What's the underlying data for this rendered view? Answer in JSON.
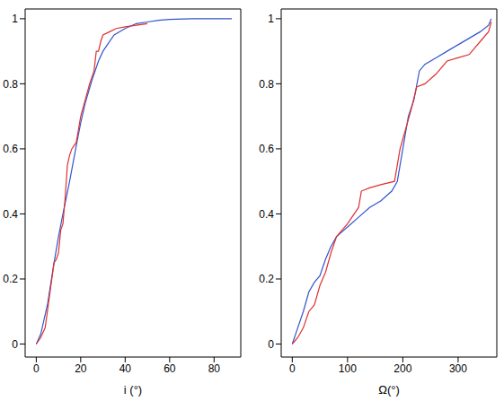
{
  "chart_data": [
    {
      "type": "line",
      "x_label": "i  (°)",
      "xlim": [
        -5,
        92
      ],
      "xticks": [
        0,
        20,
        40,
        60,
        80
      ],
      "ylim": [
        -0.04,
        1.03
      ],
      "yticks": [
        0,
        0.2,
        0.4,
        0.6,
        0.8,
        1
      ],
      "series": [
        {
          "color": "#3355cc",
          "x": [
            0,
            2,
            5,
            8,
            10,
            12,
            15,
            18,
            20,
            22,
            25,
            28,
            30,
            35,
            40,
            45,
            50,
            55,
            60,
            70,
            88
          ],
          "values": [
            0,
            0.03,
            0.12,
            0.25,
            0.33,
            0.4,
            0.5,
            0.61,
            0.68,
            0.74,
            0.81,
            0.87,
            0.9,
            0.95,
            0.97,
            0.985,
            0.99,
            0.995,
            0.998,
            1,
            1
          ]
        },
        {
          "color": "#e03030",
          "x": [
            0,
            2,
            4,
            5,
            7,
            8,
            9,
            10,
            11,
            12,
            13,
            14,
            15,
            16,
            18,
            19,
            20,
            22,
            24,
            25,
            26,
            27,
            28,
            29,
            30,
            33,
            36,
            40,
            45,
            50
          ],
          "values": [
            0,
            0.02,
            0.05,
            0.1,
            0.2,
            0.25,
            0.26,
            0.28,
            0.35,
            0.37,
            0.45,
            0.55,
            0.58,
            0.6,
            0.62,
            0.66,
            0.7,
            0.75,
            0.8,
            0.82,
            0.84,
            0.9,
            0.9,
            0.93,
            0.95,
            0.96,
            0.97,
            0.975,
            0.98,
            0.985
          ]
        }
      ]
    },
    {
      "type": "line",
      "x_label": "Ω(°)",
      "xlim": [
        -20,
        370
      ],
      "xticks": [
        0,
        100,
        200,
        300
      ],
      "ylim": [
        -0.04,
        1.03
      ],
      "yticks": [
        0,
        0.2,
        0.4,
        0.6,
        0.8,
        1
      ],
      "series": [
        {
          "color": "#3355cc",
          "x": [
            0,
            10,
            20,
            30,
            40,
            50,
            60,
            70,
            80,
            100,
            120,
            140,
            160,
            180,
            190,
            200,
            210,
            220,
            230,
            240,
            260,
            280,
            300,
            320,
            340,
            355,
            360
          ],
          "values": [
            0,
            0.05,
            0.1,
            0.16,
            0.19,
            0.21,
            0.26,
            0.3,
            0.33,
            0.36,
            0.39,
            0.42,
            0.44,
            0.47,
            0.5,
            0.6,
            0.7,
            0.75,
            0.84,
            0.86,
            0.88,
            0.9,
            0.92,
            0.94,
            0.96,
            0.98,
            1
          ]
        },
        {
          "color": "#e03030",
          "x": [
            0,
            10,
            20,
            30,
            40,
            50,
            60,
            70,
            80,
            100,
            120,
            125,
            140,
            160,
            185,
            195,
            205,
            215,
            225,
            240,
            260,
            280,
            300,
            320,
            340,
            355,
            360
          ],
          "values": [
            0,
            0.02,
            0.05,
            0.1,
            0.12,
            0.18,
            0.22,
            0.28,
            0.33,
            0.37,
            0.42,
            0.47,
            0.48,
            0.49,
            0.5,
            0.6,
            0.66,
            0.72,
            0.79,
            0.8,
            0.83,
            0.87,
            0.88,
            0.89,
            0.93,
            0.96,
            0.99
          ]
        }
      ]
    }
  ]
}
